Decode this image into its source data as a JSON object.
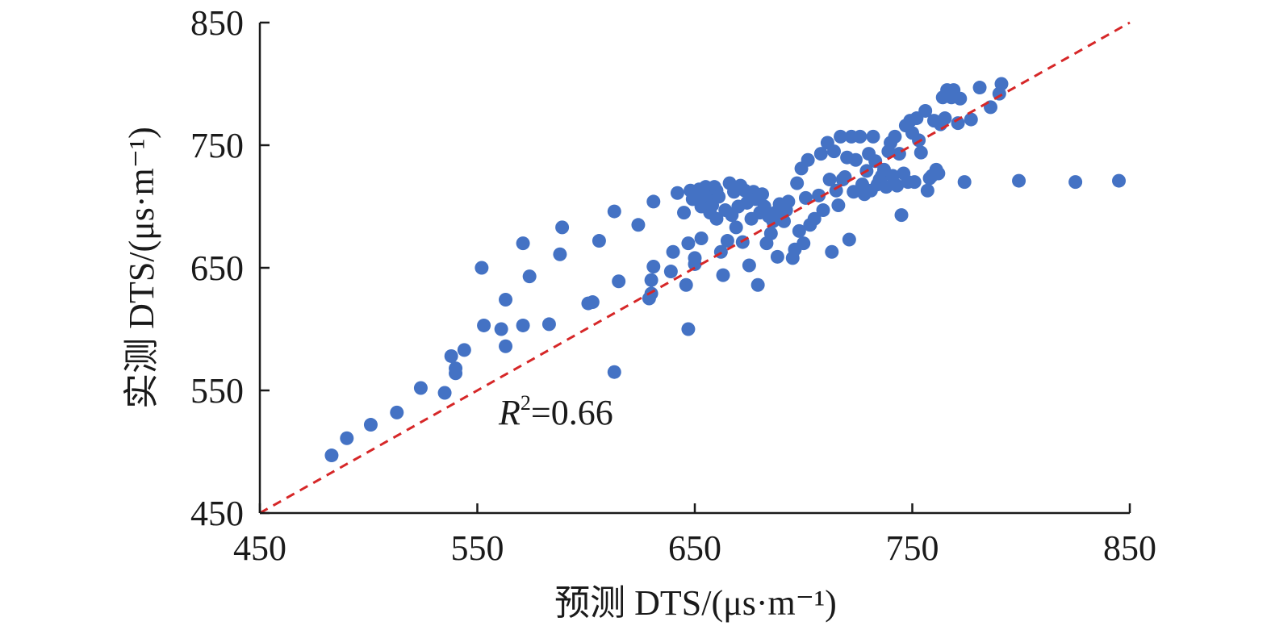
{
  "chart_data": {
    "type": "scatter",
    "title": "",
    "xlabel": "预测 DTS/(μs·m⁻¹)",
    "ylabel": "实测 DTS/(μs·m⁻¹)",
    "xlim": [
      450,
      850
    ],
    "ylim": [
      450,
      850
    ],
    "xticks": [
      "450",
      "550",
      "650",
      "750",
      "850"
    ],
    "yticks": [
      "450",
      "550",
      "650",
      "750",
      "850"
    ],
    "annotation": {
      "r2_label": "R",
      "r2_sup": "2",
      "r2_value": "=0.66"
    },
    "reference_line": {
      "style": "dashed",
      "from": [
        450,
        450
      ],
      "to": [
        850,
        850
      ]
    },
    "colors": {
      "points": "#4472C4",
      "line": "#D62728",
      "axis": "#1a1a1a"
    },
    "points": [
      [
        483,
        497
      ],
      [
        490,
        511
      ],
      [
        501,
        522
      ],
      [
        513,
        532
      ],
      [
        524,
        552
      ],
      [
        535,
        548
      ],
      [
        538,
        578
      ],
      [
        540,
        568
      ],
      [
        540,
        564
      ],
      [
        544,
        583
      ],
      [
        552,
        650
      ],
      [
        553,
        603
      ],
      [
        561,
        600
      ],
      [
        563,
        586
      ],
      [
        563,
        624
      ],
      [
        571,
        670
      ],
      [
        571,
        603
      ],
      [
        574,
        643
      ],
      [
        583,
        604
      ],
      [
        588,
        661
      ],
      [
        589,
        683
      ],
      [
        601,
        621
      ],
      [
        603,
        622
      ],
      [
        606,
        672
      ],
      [
        613,
        565
      ],
      [
        613,
        696
      ],
      [
        615,
        639
      ],
      [
        624,
        685
      ],
      [
        629,
        625
      ],
      [
        630,
        629
      ],
      [
        630,
        640
      ],
      [
        631,
        651
      ],
      [
        631,
        704
      ],
      [
        639,
        647
      ],
      [
        640,
        663
      ],
      [
        642,
        711
      ],
      [
        645,
        695
      ],
      [
        646,
        636
      ],
      [
        647,
        670
      ],
      [
        647,
        600
      ],
      [
        648,
        713
      ],
      [
        649,
        706
      ],
      [
        650,
        658
      ],
      [
        650,
        653
      ],
      [
        652,
        714
      ],
      [
        653,
        700
      ],
      [
        653,
        674
      ],
      [
        654,
        706
      ],
      [
        655,
        716
      ],
      [
        656,
        709
      ],
      [
        657,
        695
      ],
      [
        658,
        701
      ],
      [
        659,
        716
      ],
      [
        660,
        690
      ],
      [
        660,
        713
      ],
      [
        661,
        708
      ],
      [
        662,
        663
      ],
      [
        663,
        644
      ],
      [
        664,
        697
      ],
      [
        665,
        672
      ],
      [
        666,
        719
      ],
      [
        667,
        693
      ],
      [
        668,
        712
      ],
      [
        669,
        683
      ],
      [
        670,
        700
      ],
      [
        671,
        717
      ],
      [
        672,
        671
      ],
      [
        673,
        713
      ],
      [
        674,
        703
      ],
      [
        675,
        652
      ],
      [
        676,
        690
      ],
      [
        677,
        712
      ],
      [
        678,
        706
      ],
      [
        679,
        636
      ],
      [
        680,
        695
      ],
      [
        681,
        710
      ],
      [
        682,
        700
      ],
      [
        683,
        670
      ],
      [
        684,
        692
      ],
      [
        685,
        678
      ],
      [
        686,
        688
      ],
      [
        687,
        695
      ],
      [
        688,
        659
      ],
      [
        689,
        702
      ],
      [
        690,
        698
      ],
      [
        691,
        688
      ],
      [
        692,
        697
      ],
      [
        693,
        704
      ],
      [
        695,
        658
      ],
      [
        696,
        665
      ],
      [
        697,
        719
      ],
      [
        698,
        680
      ],
      [
        699,
        731
      ],
      [
        700,
        670
      ],
      [
        701,
        707
      ],
      [
        702,
        738
      ],
      [
        703,
        685
      ],
      [
        705,
        690
      ],
      [
        707,
        709
      ],
      [
        708,
        743
      ],
      [
        709,
        697
      ],
      [
        711,
        752
      ],
      [
        712,
        722
      ],
      [
        713,
        663
      ],
      [
        714,
        745
      ],
      [
        715,
        713
      ],
      [
        716,
        701
      ],
      [
        717,
        757
      ],
      [
        718,
        722
      ],
      [
        719,
        724
      ],
      [
        720,
        740
      ],
      [
        721,
        673
      ],
      [
        722,
        757
      ],
      [
        723,
        712
      ],
      [
        724,
        738
      ],
      [
        726,
        757
      ],
      [
        727,
        718
      ],
      [
        728,
        710
      ],
      [
        729,
        729
      ],
      [
        730,
        743
      ],
      [
        731,
        713
      ],
      [
        732,
        757
      ],
      [
        733,
        737
      ],
      [
        734,
        718
      ],
      [
        735,
        722
      ],
      [
        736,
        725
      ],
      [
        737,
        730
      ],
      [
        738,
        716
      ],
      [
        739,
        745
      ],
      [
        740,
        752
      ],
      [
        741,
        725
      ],
      [
        742,
        757
      ],
      [
        743,
        717
      ],
      [
        744,
        743
      ],
      [
        745,
        693
      ],
      [
        746,
        727
      ],
      [
        747,
        766
      ],
      [
        748,
        720
      ],
      [
        749,
        770
      ],
      [
        750,
        760
      ],
      [
        751,
        720
      ],
      [
        752,
        772
      ],
      [
        753,
        754
      ],
      [
        754,
        744
      ],
      [
        756,
        778
      ],
      [
        757,
        713
      ],
      [
        758,
        723
      ],
      [
        759,
        725
      ],
      [
        760,
        770
      ],
      [
        761,
        730
      ],
      [
        762,
        727
      ],
      [
        763,
        767
      ],
      [
        764,
        789
      ],
      [
        765,
        772
      ],
      [
        766,
        795
      ],
      [
        768,
        789
      ],
      [
        769,
        795
      ],
      [
        771,
        768
      ],
      [
        772,
        788
      ],
      [
        774,
        720
      ],
      [
        777,
        771
      ],
      [
        781,
        797
      ],
      [
        786,
        781
      ],
      [
        790,
        792
      ],
      [
        791,
        800
      ],
      [
        799,
        721
      ],
      [
        825,
        720
      ],
      [
        845,
        721
      ]
    ]
  }
}
